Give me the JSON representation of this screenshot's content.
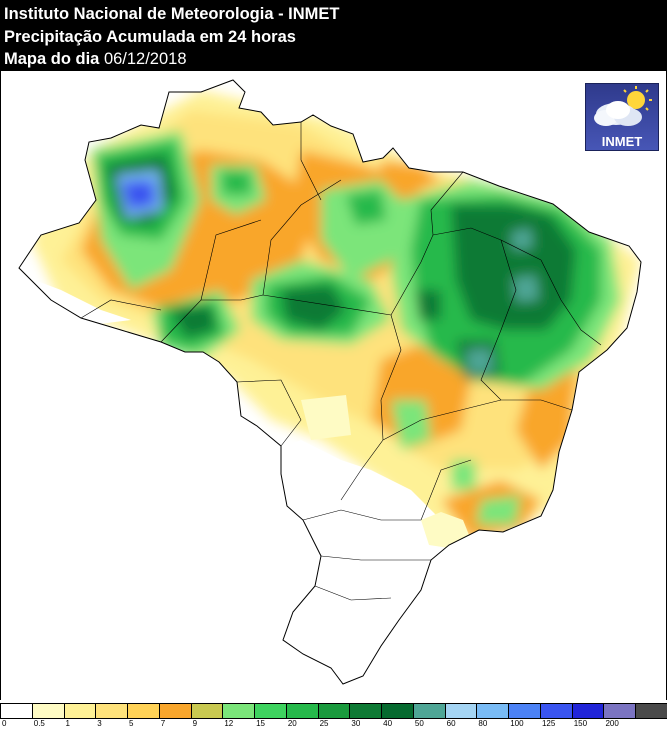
{
  "header": {
    "line1": "Instituto Nacional de Meteorologia - INMET",
    "line2": "Precipitação Acumulada em 24 horas",
    "line3_label": "Mapa do dia ",
    "line3_date": "06/12/2018"
  },
  "logo": {
    "text": "INMET",
    "icon": "sun-cloud-icon"
  },
  "legend": {
    "labels": [
      "0",
      "0.5",
      "1",
      "3",
      "5",
      "7",
      "9",
      "12",
      "15",
      "20",
      "25",
      "30",
      "40",
      "50",
      "60",
      "80",
      "100",
      "125",
      "150",
      "200"
    ],
    "colors": [
      "#ffffff",
      "#fefbc4",
      "#fef196",
      "#fee27b",
      "#ffd257",
      "#f9a62c",
      "#c9c951",
      "#7be57a",
      "#3ed35f",
      "#26b94b",
      "#1a9a3d",
      "#0e7a34",
      "#066a2f",
      "#4fa696",
      "#a4d4f3",
      "#79bbf5",
      "#4c82f5",
      "#3a55f0",
      "#2125d8",
      "#7b74c2",
      "#4a4a4a"
    ]
  }
}
